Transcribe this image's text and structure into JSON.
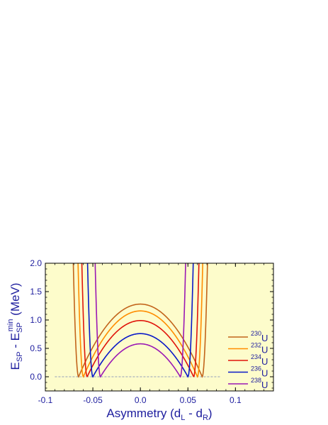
{
  "chart_data": {
    "type": "line",
    "title": "",
    "xlabel": {
      "main": "Asymmetry (d",
      "sub1": "L",
      "mid": " - d",
      "sub2": "R",
      "end": ")"
    },
    "ylabel": {
      "e1": "E",
      "s1": "SP",
      "mid": " - E",
      "s2": "SP",
      "sup": "min",
      "end": " (MeV)"
    },
    "xlim": [
      -0.1,
      0.14
    ],
    "ylim": [
      -0.25,
      2.0
    ],
    "xticks": [
      -0.1,
      -0.05,
      0.0,
      0.05,
      0.1
    ],
    "xtick_labels": [
      "-0.1",
      "-0.05",
      "0.0",
      "0.05",
      "0.1"
    ],
    "yticks": [
      0.0,
      0.5,
      1.0,
      1.5,
      2.0
    ],
    "ytick_labels": [
      "0.0",
      "0.5",
      "1.0",
      "1.5",
      "2.0"
    ],
    "grid": false,
    "legend_placement": "bottom-right",
    "background_color": "#fdfccb",
    "baseline": {
      "y": 0.0,
      "x_range": [
        -0.09,
        0.085
      ],
      "style": "dashed",
      "color": "#6f7fb5"
    },
    "series": [
      {
        "name_sup": "230",
        "name_main": "U",
        "color": "#c2641b",
        "peak": 1.28,
        "minimum_x": 0.065
      },
      {
        "name_sup": "232",
        "name_main": "U",
        "color": "#ff8c00",
        "peak": 1.16,
        "minimum_x": 0.06
      },
      {
        "name_sup": "234",
        "name_main": "U",
        "color": "#e0140a",
        "peak": 0.99,
        "minimum_x": 0.056
      },
      {
        "name_sup": "236",
        "name_main": "U",
        "color": "#0818c8",
        "peak": 0.76,
        "minimum_x": 0.05
      },
      {
        "name_sup": "238",
        "name_main": "U",
        "color": "#9a18b4",
        "peak": 0.58,
        "minimum_x": 0.042
      }
    ]
  }
}
